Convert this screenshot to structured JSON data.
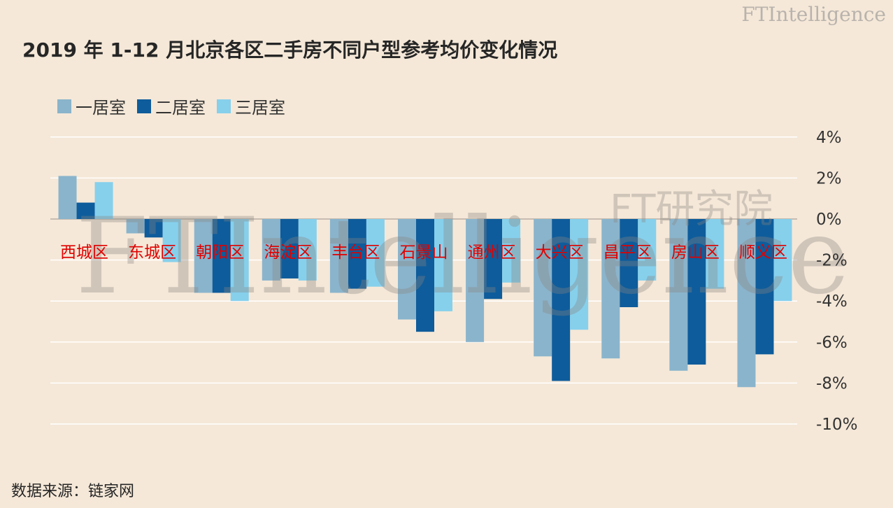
{
  "brand": {
    "name": "FTIntelligence",
    "sub": "FT研究院"
  },
  "title": "2019 年 1-12 月北京各区二手房不同户型参考均价变化情况",
  "source": "数据来源：链家网",
  "watermark": {
    "main": "FTIntelligence",
    "sub": "FT研究院"
  },
  "chart_data": {
    "type": "bar",
    "title": "2019 年 1-12 月北京各区二手房不同户型参考均价变化情况",
    "categories": [
      "西城区",
      "东城区",
      "朝阳区",
      "海淀区",
      "丰台区",
      "石景山",
      "通州区",
      "大兴区",
      "昌平区",
      "房山区",
      "顺义区"
    ],
    "series": [
      {
        "name": "一居室",
        "color": "#8ab4cc",
        "values": [
          2.1,
          -0.7,
          -3.6,
          -3.0,
          -3.6,
          -4.9,
          -6.0,
          -6.7,
          -6.8,
          -7.4,
          -8.2
        ]
      },
      {
        "name": "二居室",
        "color": "#0e5c9b",
        "values": [
          0.8,
          -0.9,
          -3.6,
          -2.9,
          -3.4,
          -5.5,
          -3.9,
          -7.9,
          -4.3,
          -7.1,
          -6.6
        ]
      },
      {
        "name": "三居室",
        "color": "#86d0ec",
        "values": [
          1.8,
          -2.1,
          -4.0,
          -3.0,
          -3.3,
          -4.5,
          -3.1,
          -5.4,
          -3.0,
          -3.4,
          -4.0
        ]
      }
    ],
    "y_ticks": [
      "4%",
      "2%",
      "0%",
      "-2%",
      "-4%",
      "-6%",
      "-8%",
      "-10%"
    ],
    "ylim": [
      -10,
      4
    ],
    "grid": true,
    "legend": "top-left",
    "y_axis_side": "right"
  }
}
